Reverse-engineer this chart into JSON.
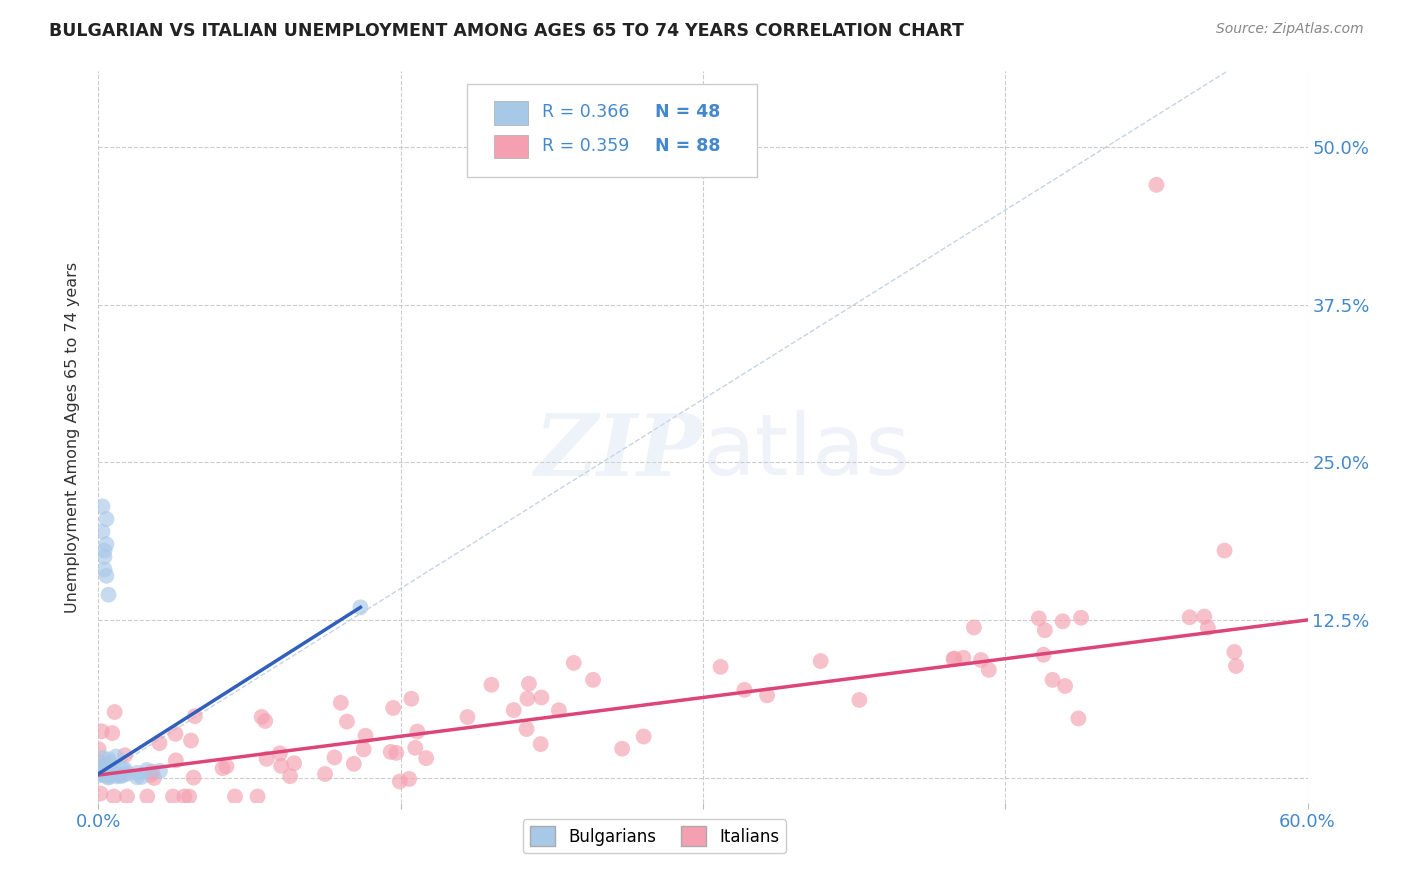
{
  "title": "BULGARIAN VS ITALIAN UNEMPLOYMENT AMONG AGES 65 TO 74 YEARS CORRELATION CHART",
  "source": "Source: ZipAtlas.com",
  "ylabel": "Unemployment Among Ages 65 to 74 years",
  "xlim": [
    0.0,
    0.6
  ],
  "ylim": [
    -0.02,
    0.56
  ],
  "ytick_positions": [
    0.0,
    0.125,
    0.25,
    0.375,
    0.5
  ],
  "yticklabels": [
    "",
    "12.5%",
    "25.0%",
    "37.5%",
    "50.0%"
  ],
  "xtick_positions": [
    0.0,
    0.15,
    0.3,
    0.45,
    0.6
  ],
  "xticklabels": [
    "0.0%",
    "",
    "",
    "",
    "60.0%"
  ],
  "grid_color": "#cccccc",
  "bg_color": "#ffffff",
  "blue_color": "#a8c8e8",
  "pink_color": "#f4a0b0",
  "blue_line_color": "#3060bb",
  "pink_line_color": "#dd4477",
  "diag_line_color": "#b8c8e0",
  "tick_label_color": "#4488cc",
  "legend_text_color": "#333333",
  "legend_value_color": "#4488cc",
  "blue_trend_x": [
    0.0,
    0.13
  ],
  "blue_trend_y": [
    0.003,
    0.135
  ],
  "pink_trend_x": [
    0.0,
    0.6
  ],
  "pink_trend_y": [
    0.002,
    0.125
  ]
}
